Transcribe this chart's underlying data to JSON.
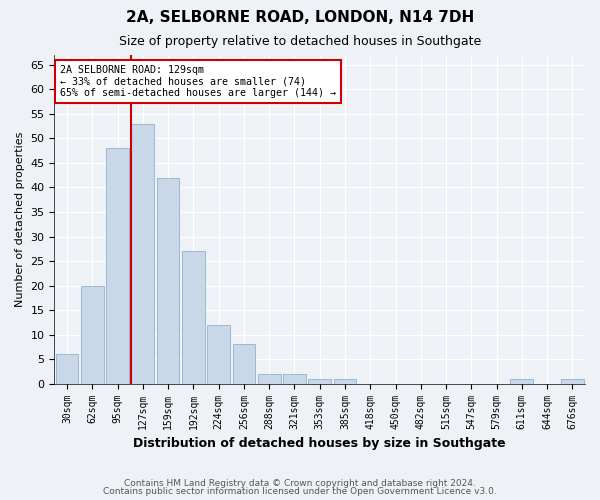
{
  "title": "2A, SELBORNE ROAD, LONDON, N14 7DH",
  "subtitle": "Size of property relative to detached houses in Southgate",
  "xlabel": "Distribution of detached houses by size in Southgate",
  "ylabel": "Number of detached properties",
  "bin_labels": [
    "30sqm",
    "62sqm",
    "95sqm",
    "127sqm",
    "159sqm",
    "192sqm",
    "224sqm",
    "256sqm",
    "288sqm",
    "321sqm",
    "353sqm",
    "385sqm",
    "418sqm",
    "450sqm",
    "482sqm",
    "515sqm",
    "547sqm",
    "579sqm",
    "611sqm",
    "644sqm",
    "676sqm"
  ],
  "bar_values": [
    6,
    20,
    48,
    53,
    42,
    27,
    12,
    8,
    2,
    2,
    1,
    1,
    0,
    0,
    0,
    0,
    0,
    0,
    1,
    0,
    1
  ],
  "bar_color": "#c8d8e8",
  "bar_edgecolor": "#a0b8d0",
  "marker_line_index": 3,
  "marker_line_color": "#cc0000",
  "annotation_line1": "2A SELBORNE ROAD: 129sqm",
  "annotation_line2": "← 33% of detached houses are smaller (74)",
  "annotation_line3": "65% of semi-detached houses are larger (144) →",
  "annotation_box_color": "#ffffff",
  "annotation_box_edgecolor": "#cc0000",
  "ylim": [
    0,
    67
  ],
  "yticks": [
    0,
    5,
    10,
    15,
    20,
    25,
    30,
    35,
    40,
    45,
    50,
    55,
    60,
    65
  ],
  "footer1": "Contains HM Land Registry data © Crown copyright and database right 2024.",
  "footer2": "Contains public sector information licensed under the Open Government Licence v3.0.",
  "bg_color": "#eef2f7",
  "plot_bg_color": "#eef2f7",
  "grid_color": "#ffffff"
}
